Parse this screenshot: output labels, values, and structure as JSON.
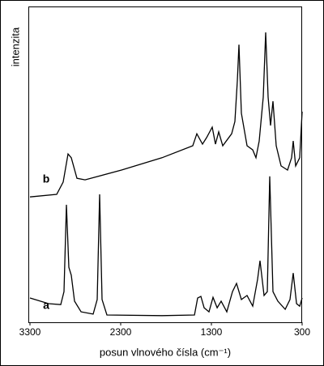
{
  "chart_data": {
    "type": "line",
    "ylabel": "intenzita",
    "xlabel": "posun vlnového čísla (cm⁻¹)",
    "xlim": [
      3300,
      300
    ],
    "xticks": [
      3300,
      2300,
      1300,
      300
    ],
    "ylim": [
      0,
      100
    ],
    "annotations": [
      "a",
      "b"
    ],
    "series": [
      {
        "name": "a",
        "color": "#000000",
        "x": [
          3300,
          3095,
          2961,
          2925,
          2898,
          2871,
          2845,
          2809,
          2737,
          2604,
          2559,
          2532,
          2505,
          2452,
          1845,
          1487,
          1452,
          1416,
          1380,
          1327,
          1282,
          1237,
          1193,
          1130,
          1068,
          1023,
          970,
          907,
          845,
          791,
          764,
          720,
          684,
          657,
          621,
          568,
          487,
          434,
          398,
          362,
          327,
          300
        ],
        "values": [
          7.7,
          5.9,
          5.6,
          9.7,
          37.2,
          17.4,
          14.9,
          6.7,
          3.3,
          2.6,
          7.2,
          40.5,
          7.2,
          2.3,
          2.1,
          2.3,
          7.7,
          8.2,
          4.6,
          3.3,
          7.9,
          4.6,
          6.7,
          3.3,
          9.7,
          12.3,
          7.2,
          8.5,
          5.1,
          13.6,
          19.5,
          8.5,
          9.7,
          46.2,
          9.7,
          6.7,
          4.1,
          7.2,
          15.6,
          5.9,
          5.1,
          7.7
        ]
      },
      {
        "name": "b",
        "color": "#000000",
        "x": [
          3300,
          3005,
          2934,
          2880,
          2845,
          2782,
          2693,
          2291,
          1845,
          1505,
          1461,
          1398,
          1353,
          1291,
          1255,
          1220,
          1175,
          1077,
          1041,
          1014,
          996,
          970,
          907,
          845,
          809,
          773,
          729,
          702,
          675,
          648,
          621,
          586,
          532,
          461,
          416,
          398,
          371,
          327,
          300
        ],
        "values": [
          39.7,
          40.5,
          44.4,
          53.3,
          52.1,
          45.6,
          45.1,
          48.2,
          52.1,
          55.9,
          59.7,
          56.4,
          58.5,
          61.8,
          56.4,
          60.3,
          55.9,
          59.7,
          63.6,
          76.4,
          87.9,
          66.2,
          55.9,
          54.6,
          52.1,
          57.4,
          71.3,
          91.8,
          71.3,
          62.3,
          70.0,
          55.9,
          49.5,
          48.2,
          52.1,
          57.4,
          49.5,
          52.1,
          66.7
        ]
      }
    ]
  }
}
